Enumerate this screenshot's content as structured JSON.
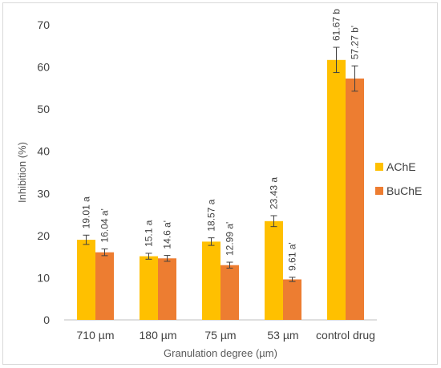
{
  "chart_data": {
    "type": "bar",
    "title": "",
    "xlabel": "Granulation degree (µm)",
    "ylabel": "Inhibition (%)",
    "ylim": [
      0,
      70
    ],
    "yticks": [
      0,
      10,
      20,
      30,
      40,
      50,
      60,
      70
    ],
    "grid": false,
    "legend_position": "right",
    "categories": [
      "710 µm",
      "180 µm",
      "75 µm",
      "53 µm",
      "control drug"
    ],
    "series": [
      {
        "name": "AChE",
        "color": "#FFC000",
        "values": [
          19.01,
          15.1,
          18.57,
          23.43,
          61.67
        ],
        "errors": [
          1.1,
          0.7,
          0.9,
          1.3,
          3.0
        ],
        "labels": [
          "19.01 a",
          "15.1 a",
          "18.57 a",
          "23.43 a",
          "61.67 b"
        ]
      },
      {
        "name": "BuChE",
        "color": "#ED7D31",
        "values": [
          16.04,
          14.6,
          12.99,
          9.61,
          57.27
        ],
        "errors": [
          0.8,
          0.7,
          0.7,
          0.5,
          3.0
        ],
        "labels": [
          "16.04 a'",
          "14.6 a'",
          "12.99 a'",
          "9.61 a'",
          "57.27 b'"
        ]
      }
    ]
  }
}
